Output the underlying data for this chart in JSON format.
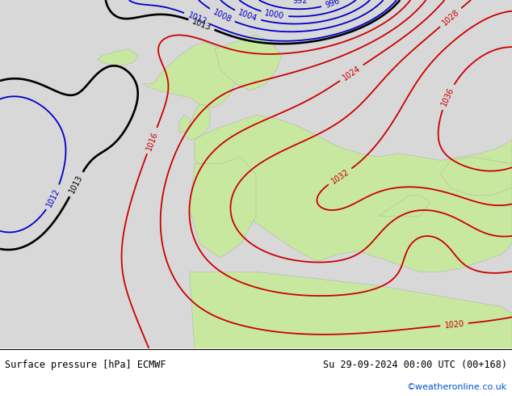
{
  "title_left": "Surface pressure [hPa] ECMWF",
  "title_right": "Su 29-09-2024 00:00 UTC (00+168)",
  "credit": "©weatheronline.co.uk",
  "bg_ocean_color": "#d8d8d8",
  "bg_land_color": "#c8e8a0",
  "bottom_bar_color": "#e8e8e8",
  "figsize": [
    6.34,
    4.9
  ],
  "dpi": 100,
  "red_color": "#cc0000",
  "blue_color": "#0000cc",
  "black_color": "#000000",
  "red_lw": 1.3,
  "blue_lw": 1.3,
  "black_lw": 1.9,
  "label_fontsize": 7
}
